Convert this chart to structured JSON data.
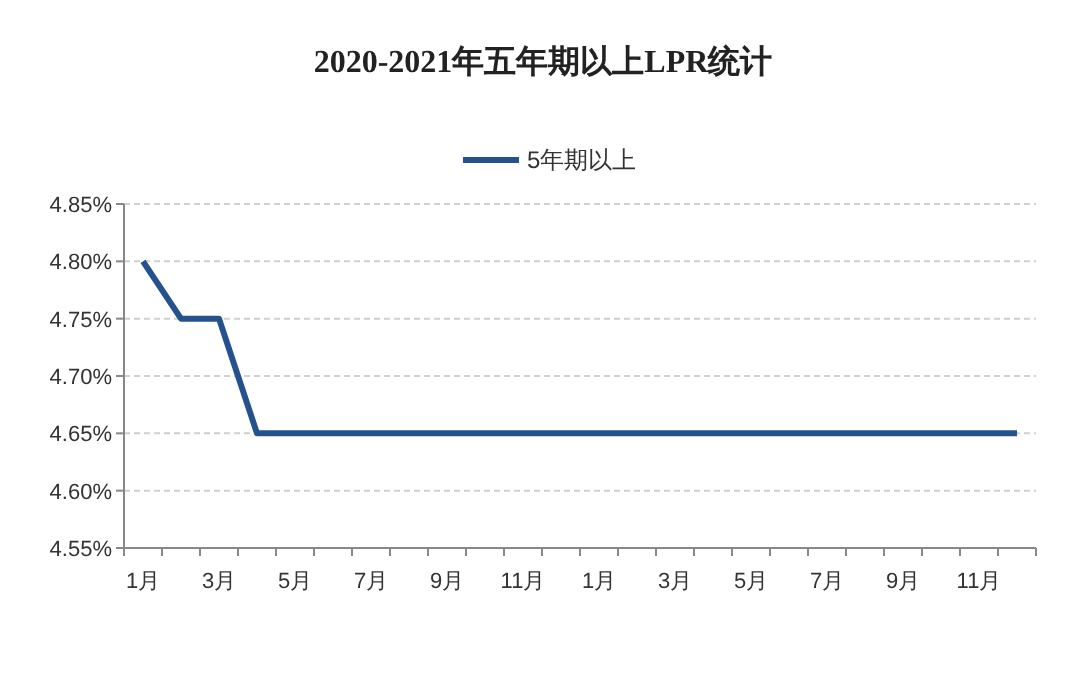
{
  "chart_data": {
    "type": "line",
    "title": "2020-2021年五年期以上LPR统计",
    "categories": [
      "1月",
      null,
      "3月",
      null,
      "5月",
      null,
      "7月",
      null,
      "9月",
      null,
      "11月",
      null,
      "1月",
      null,
      "3月",
      null,
      "5月",
      null,
      "7月",
      null,
      "9月",
      null,
      "11月",
      null
    ],
    "series": [
      {
        "name": "5年期以上",
        "color": "#24528f",
        "values": [
          4.8,
          4.75,
          4.75,
          4.65,
          4.65,
          4.65,
          4.65,
          4.65,
          4.65,
          4.65,
          4.65,
          4.65,
          4.65,
          4.65,
          4.65,
          4.65,
          4.65,
          4.65,
          4.65,
          4.65,
          4.65,
          4.65,
          4.65,
          4.65
        ]
      }
    ],
    "ylim": [
      4.55,
      4.85
    ],
    "yticks": [
      {
        "value": 4.55,
        "label": "4.55%"
      },
      {
        "value": 4.6,
        "label": "4.60%"
      },
      {
        "value": 4.65,
        "label": "4.65%"
      },
      {
        "value": 4.7,
        "label": "4.70%"
      },
      {
        "value": 4.75,
        "label": "4.75%"
      },
      {
        "value": 4.8,
        "label": "4.80%"
      },
      {
        "value": 4.85,
        "label": "4.85%"
      }
    ],
    "grid": "y",
    "legend": "top",
    "marker": "none",
    "line_style": "solid"
  }
}
